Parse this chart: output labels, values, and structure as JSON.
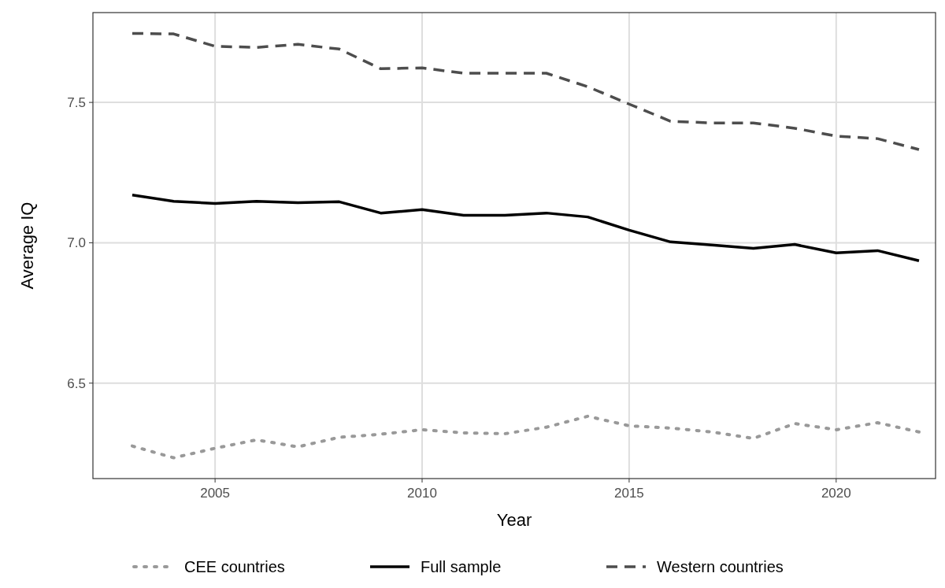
{
  "chart_data": {
    "type": "line",
    "xlabel": "Year",
    "ylabel": "Average IQ",
    "x": [
      2003,
      2004,
      2005,
      2006,
      2007,
      2008,
      2009,
      2010,
      2011,
      2012,
      2013,
      2014,
      2015,
      2016,
      2017,
      2018,
      2019,
      2020,
      2021,
      2022
    ],
    "xlim": [
      2002.05,
      2022.4
    ],
    "xticks": [
      2005,
      2010,
      2015,
      2020
    ],
    "ylim": [
      6.16,
      7.82
    ],
    "yticks": [
      6.5,
      {
        "value": 7,
        "label": "7.0"
      },
      7.5
    ],
    "grid": true,
    "legend": "bottom",
    "series": [
      {
        "name": "CEE countries",
        "color": "#999999",
        "line_style": "dotted",
        "values": [
          6.276,
          6.234,
          6.268,
          6.298,
          6.273,
          6.307,
          6.318,
          6.334,
          6.323,
          6.32,
          6.343,
          6.382,
          6.348,
          6.34,
          6.326,
          6.303,
          6.356,
          6.334,
          6.359,
          6.326
        ]
      },
      {
        "name": "Full sample",
        "color": "#000000",
        "line_style": "solid",
        "values": [
          7.17,
          7.148,
          7.14,
          7.148,
          7.143,
          7.146,
          7.106,
          7.118,
          7.098,
          7.098,
          7.106,
          7.092,
          7.045,
          7.003,
          6.992,
          6.98,
          6.994,
          6.964,
          6.972,
          6.936
        ]
      },
      {
        "name": "Western countries",
        "color": "#4d4d4d",
        "line_style": "dashed",
        "values": [
          7.746,
          7.744,
          7.7,
          7.696,
          7.707,
          7.69,
          7.62,
          7.623,
          7.604,
          7.604,
          7.604,
          7.556,
          7.494,
          7.433,
          7.427,
          7.427,
          7.408,
          7.38,
          7.371,
          7.332
        ]
      }
    ]
  }
}
